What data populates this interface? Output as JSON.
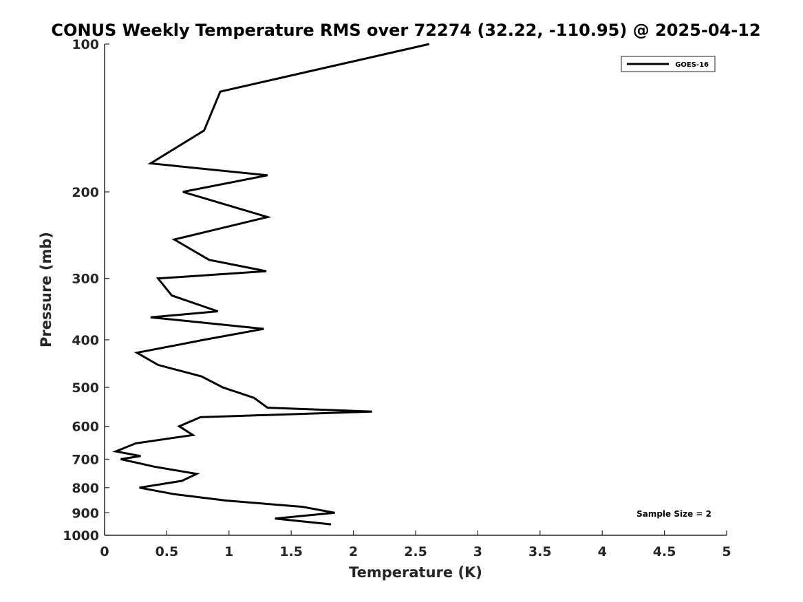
{
  "chart_data": {
    "type": "line",
    "title": "CONUS Weekly Temperature RMS over 72274 (32.22, -110.95) @ 2025-04-12",
    "xlabel": "Temperature (K)",
    "ylabel": "Pressure (mb)",
    "xlim": [
      0,
      5
    ],
    "ylim": [
      100,
      1000
    ],
    "y_scale": "log",
    "y_reversed": true,
    "grid": false,
    "legend_position": "top-right",
    "xticks": [
      "0",
      "0.5",
      "1",
      "1.5",
      "2",
      "2.5",
      "3",
      "3.5",
      "4",
      "4.5",
      "5"
    ],
    "yticks": [
      "100",
      "200",
      "300",
      "400",
      "500",
      "600",
      "700",
      "800",
      "900",
      "1000"
    ],
    "series": [
      {
        "name": "GOES-16",
        "color": "#000000",
        "points": [
          [
            2.61,
            100
          ],
          [
            0.93,
            125
          ],
          [
            0.8,
            150
          ],
          [
            0.37,
            175
          ],
          [
            1.31,
            185
          ],
          [
            0.63,
            200
          ],
          [
            1.31,
            225
          ],
          [
            0.56,
            250
          ],
          [
            0.84,
            275
          ],
          [
            1.3,
            290
          ],
          [
            0.43,
            300
          ],
          [
            0.54,
            325
          ],
          [
            0.91,
            350
          ],
          [
            0.37,
            360
          ],
          [
            1.28,
            380
          ],
          [
            0.8,
            400
          ],
          [
            0.26,
            425
          ],
          [
            0.43,
            450
          ],
          [
            0.78,
            475
          ],
          [
            0.95,
            500
          ],
          [
            1.2,
            525
          ],
          [
            1.31,
            550
          ],
          [
            2.15,
            560
          ],
          [
            0.77,
            575
          ],
          [
            0.6,
            600
          ],
          [
            0.71,
            625
          ],
          [
            0.25,
            650
          ],
          [
            0.09,
            675
          ],
          [
            0.29,
            690
          ],
          [
            0.13,
            700
          ],
          [
            0.4,
            725
          ],
          [
            0.74,
            750
          ],
          [
            0.62,
            775
          ],
          [
            0.28,
            800
          ],
          [
            0.56,
            825
          ],
          [
            0.98,
            850
          ],
          [
            1.59,
            875
          ],
          [
            1.85,
            900
          ],
          [
            1.37,
            925
          ],
          [
            1.82,
            950
          ]
        ]
      }
    ],
    "annotations": [
      {
        "text": "Sample Size = 2",
        "position": "bottom-right"
      }
    ]
  }
}
